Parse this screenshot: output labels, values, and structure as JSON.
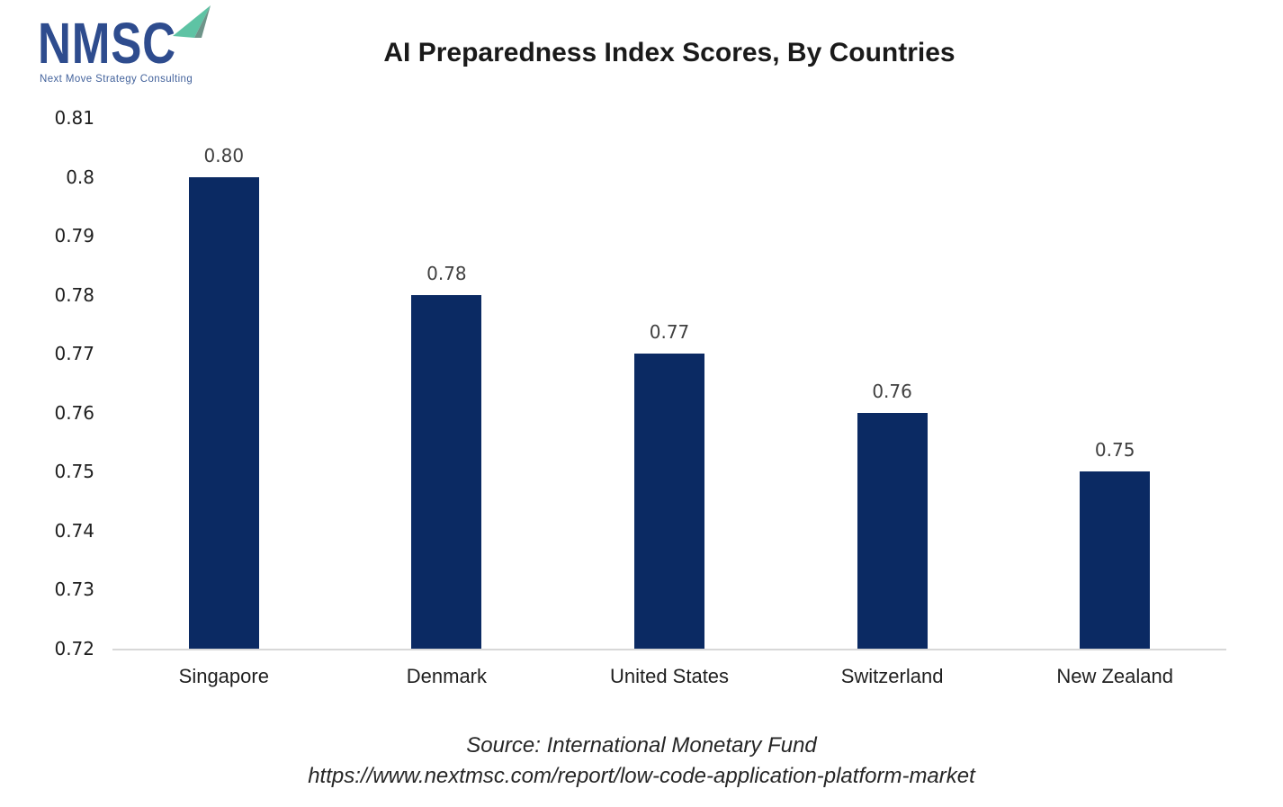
{
  "logo": {
    "text": "NMSC",
    "subtitle": "Next Move Strategy Consulting",
    "colors": {
      "text": "#2E4C8E",
      "subtitle": "#44639C",
      "arrow_light": "#5EC3A4",
      "arrow_dark": "#6E9489"
    }
  },
  "chart_data": {
    "type": "bar",
    "title": "AI Preparedness Index Scores, By Countries",
    "categories": [
      "Singapore",
      "Denmark",
      "United States",
      "Switzerland",
      "New Zealand"
    ],
    "values": [
      0.8,
      0.78,
      0.77,
      0.76,
      0.75
    ],
    "value_labels": [
      "0.80",
      "0.78",
      "0.77",
      "0.76",
      "0.75"
    ],
    "xlabel": "",
    "ylabel": "",
    "ylim": [
      0.72,
      0.81
    ],
    "ytick_step": 0.01,
    "ytick_labels": [
      "0.81",
      "0.8",
      "0.79",
      "0.78",
      "0.77",
      "0.76",
      "0.75",
      "0.74",
      "0.73",
      "0.72"
    ],
    "grid": false,
    "legend": null,
    "colors": {
      "bar": "#0B2A63",
      "value_label": "#404040",
      "axis_label": "#1F1F1F",
      "axis_line": "#D8D8D8",
      "title": "#1A1A1A"
    }
  },
  "footer": {
    "source_line": "Source: International Monetary Fund",
    "url_line": "https://www.nextmsc.com/report/low-code-application-platform-market"
  }
}
